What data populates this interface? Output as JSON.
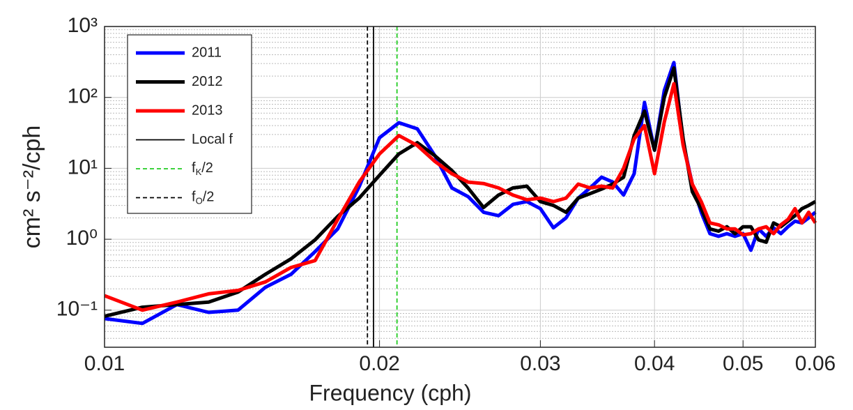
{
  "chart_data": {
    "type": "line",
    "xlabel": "Frequency (cph)",
    "ylabel": "cm² s⁻²/cph",
    "xscale": "log",
    "yscale": "log",
    "grid": true,
    "legend": "upper left",
    "xlim": [
      0.01,
      0.06
    ],
    "xticks": [
      0.01,
      0.02,
      0.03,
      0.04,
      0.05,
      0.06
    ],
    "ylim": [
      0.03,
      1000
    ],
    "yticks": [
      {
        "value": 0.1,
        "label": "10⁻¹"
      },
      {
        "value": 1,
        "label": "10⁰"
      },
      {
        "value": 10,
        "label": "10¹"
      },
      {
        "value": 100,
        "label": "10²"
      },
      {
        "value": 1000,
        "label": "10³"
      }
    ],
    "x": [
      0.01,
      0.011,
      0.012,
      0.013,
      0.014,
      0.015,
      0.016,
      0.017,
      0.018,
      0.019,
      0.02,
      0.021,
      0.022,
      0.023,
      0.024,
      0.025,
      0.026,
      0.027,
      0.028,
      0.029,
      0.03,
      0.031,
      0.032,
      0.033,
      0.034,
      0.035,
      0.036,
      0.037,
      0.038,
      0.039,
      0.04,
      0.041,
      0.042,
      0.043,
      0.044,
      0.045,
      0.046,
      0.047,
      0.048,
      0.049,
      0.05,
      0.051,
      0.052,
      0.053,
      0.054,
      0.055,
      0.056,
      0.057,
      0.058,
      0.059,
      0.06
    ],
    "series": [
      {
        "name": "2011",
        "color": "#0000ff",
        "values": [
          0.076,
          0.065,
          0.12,
          0.093,
          0.1,
          0.21,
          0.32,
          0.67,
          1.4,
          5.5,
          27,
          44,
          36,
          15,
          5.3,
          4,
          2.4,
          2.15,
          3.1,
          3.4,
          2.7,
          1.45,
          2,
          3.8,
          5.3,
          7.5,
          6.4,
          4.2,
          8.4,
          85,
          18,
          125,
          310,
          23,
          6,
          2.4,
          1.2,
          1.1,
          1.2,
          1.1,
          1.2,
          0.7,
          1.4,
          1.1,
          1.45,
          1.2,
          1.5,
          1.8,
          1.7,
          2,
          2.4
        ]
      },
      {
        "name": "2012",
        "color": "#000000",
        "values": [
          0.082,
          0.11,
          0.12,
          0.13,
          0.18,
          0.32,
          0.53,
          0.98,
          2.1,
          3.8,
          8,
          16,
          23,
          15,
          9.3,
          5.3,
          2.8,
          4.2,
          5.3,
          5.6,
          3.4,
          3,
          2.4,
          3.8,
          4.4,
          5.1,
          6,
          7.5,
          29,
          64,
          18,
          100,
          260,
          26,
          4.7,
          2.7,
          1.4,
          1.3,
          1.5,
          1.2,
          1.5,
          1.5,
          0.98,
          0.91,
          1.7,
          1.5,
          1.8,
          2.15,
          2.7,
          3,
          3.4
        ]
      },
      {
        "name": "2013",
        "color": "#ff0000",
        "values": [
          0.16,
          0.1,
          0.13,
          0.17,
          0.19,
          0.25,
          0.4,
          0.5,
          1.9,
          6.4,
          16,
          29,
          21,
          12.5,
          8.4,
          6.4,
          6.1,
          5.3,
          4.2,
          3.6,
          3.8,
          3.4,
          3.8,
          6,
          5.3,
          5.6,
          5.3,
          10,
          26,
          40,
          8.4,
          45,
          156,
          21,
          6,
          3.4,
          1.7,
          1.6,
          1.4,
          1.4,
          1.15,
          1.2,
          1.4,
          1.5,
          1.2,
          1.6,
          1.9,
          2.7,
          1.7,
          2.4,
          1.7
        ]
      }
    ],
    "vlines": [
      {
        "name": "Local f",
        "x": 0.0197,
        "color": "#000000",
        "dashed": false
      },
      {
        "name": "fK/2",
        "x": 0.0209,
        "color": "#22cc22",
        "dashed": true
      },
      {
        "name": "fO/2",
        "x": 0.0194,
        "color": "#000000",
        "dashed": true
      }
    ]
  }
}
